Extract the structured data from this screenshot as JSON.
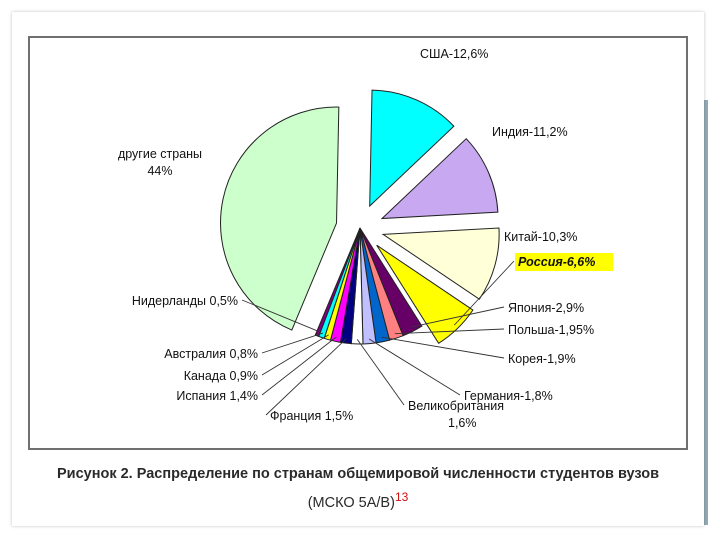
{
  "chart_data": {
    "type": "pie",
    "slices": [
      {
        "label": "США-12,6%",
        "value": 12.6,
        "color": "#00ffff",
        "exploded": true
      },
      {
        "label": "Индия-11,2%",
        "value": 11.2,
        "color": "#c8a8f0",
        "exploded": true
      },
      {
        "label": "Китай-10,3%",
        "value": 10.3,
        "color": "#ffffd8",
        "exploded": true
      },
      {
        "label": "Россия-6,6%",
        "value": 6.6,
        "color": "#ffff00",
        "exploded": true,
        "highlight": true
      },
      {
        "label": "Япония-2,9%",
        "value": 2.9,
        "color": "#660066",
        "exploded": false
      },
      {
        "label": "Польша-1,95%",
        "value": 1.95,
        "color": "#ff8080",
        "exploded": false
      },
      {
        "label": "Корея-1,9%",
        "value": 1.9,
        "color": "#0066cc",
        "exploded": false
      },
      {
        "label": "Германия-1,8%",
        "value": 1.8,
        "color": "#c0c0ff",
        "exploded": false
      },
      {
        "label": "Великобритания 1,6%",
        "value": 1.6,
        "color": "#ffffff",
        "exploded": false
      },
      {
        "label": "Франция 1,5%",
        "value": 1.5,
        "color": "#000080",
        "exploded": false
      },
      {
        "label": "Испания 1,4%",
        "value": 1.4,
        "color": "#ff00ff",
        "exploded": false
      },
      {
        "label": "Канада 0,9%",
        "value": 0.9,
        "color": "#ffff00",
        "exploded": false
      },
      {
        "label": "Австралия 0,8%",
        "value": 0.8,
        "color": "#00ffff",
        "exploded": false
      },
      {
        "label": "Нидерланды 0,5%",
        "value": 0.5,
        "color": "#800080",
        "exploded": false
      },
      {
        "label": "другие страны 44%",
        "value": 44,
        "color": "#ccffcc",
        "exploded": true
      }
    ],
    "highlight_color": "#ffff00"
  },
  "caption": {
    "line1": "Рисунок 2. Распределение по странам общемировой численности студентов вузов",
    "line2": "(МСКО 5А/В)",
    "footnote": "13"
  }
}
